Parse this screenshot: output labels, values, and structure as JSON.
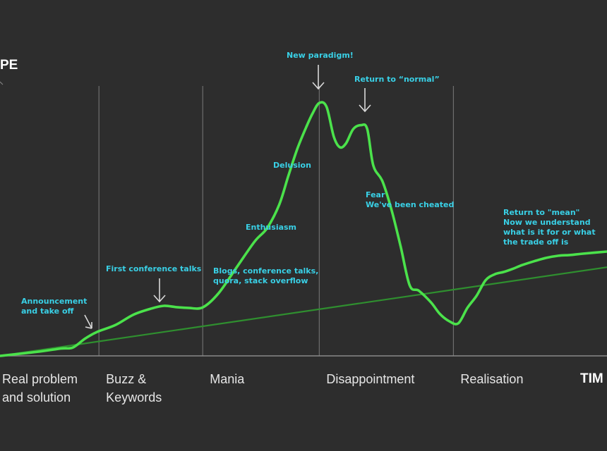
{
  "chart_data": {
    "type": "line",
    "y_axis_title": "PE",
    "x_axis_title": "TIM",
    "ylim": [
      0,
      100
    ],
    "xlim": [
      0,
      100
    ],
    "grid": false,
    "legend": "none",
    "colors": {
      "background": "#2d2d2d",
      "hype_curve": "#4be24b",
      "trend_line": "#2f8f2f",
      "annotation": "#39d0e6",
      "divider": "#6e6e6e"
    },
    "phases": [
      {
        "label": "Real problem\nand solution",
        "start": 0,
        "end": 16.3
      },
      {
        "label": "Buzz &\nKeywords",
        "start": 16.3,
        "end": 33.4
      },
      {
        "label": "Mania",
        "start": 33.4,
        "end": 52.6
      },
      {
        "label": "Disappointment",
        "start": 52.6,
        "end": 74.7
      },
      {
        "label": "Realisation",
        "start": 74.7,
        "end": 100
      }
    ],
    "series": [
      {
        "x": [
          0,
          6,
          10,
          12,
          14,
          16,
          19,
          22,
          25,
          27,
          29,
          31,
          33.4,
          36,
          39,
          42,
          44,
          46,
          47.5,
          49,
          50.5,
          51.5,
          52.6,
          53.8,
          55,
          56,
          57,
          58.2,
          59.5,
          60.5,
          61.5,
          63,
          64.5,
          66,
          67.5,
          69,
          71,
          72.5,
          74,
          75.5,
          77,
          78.5,
          80,
          81.5,
          83,
          84.5,
          86,
          88,
          90,
          92,
          94,
          96,
          100
        ],
        "y": [
          0,
          1.5,
          2.8,
          3.2,
          6.6,
          9.2,
          11.8,
          15.8,
          18.2,
          19.2,
          18.7,
          18.4,
          18.6,
          24,
          34,
          44,
          49,
          58,
          69,
          79.5,
          88,
          93,
          97,
          95.5,
          84,
          80,
          81.5,
          87,
          88.5,
          87,
          73,
          67,
          56,
          42,
          27,
          25,
          20.5,
          16,
          13.3,
          12.5,
          18.4,
          23,
          29,
          31.3,
          32.2,
          33.4,
          34.8,
          36.3,
          37.6,
          38.4,
          38.7,
          39.2,
          40
        ]
      },
      {
        "x": [
          0,
          100
        ],
        "y": [
          0,
          34
        ]
      }
    ],
    "annotations": [
      {
        "text": "Announcement\nand take off",
        "x": 15,
        "y": 10,
        "arrow": true
      },
      {
        "text": "First conference talks",
        "x": 26,
        "y": 22,
        "arrow": true
      },
      {
        "text": "Blogs, conference talks,\nquora, stack overflow",
        "x": 35,
        "y": 29,
        "arrow": false
      },
      {
        "text": "Enthusiasm",
        "x": 41,
        "y": 48,
        "arrow": false
      },
      {
        "text": "Delusion",
        "x": 45,
        "y": 72,
        "arrow": false
      },
      {
        "text": "New paradigm!",
        "x": 52.4,
        "y": 100,
        "arrow": true
      },
      {
        "text": "Return to “normal”",
        "x": 60,
        "y": 90,
        "arrow": true
      },
      {
        "text": "Fear\nWe've been cheated",
        "x": 60,
        "y": 58,
        "arrow": false
      },
      {
        "text": "Return to \"mean\"\nNow we understand\nwhat is it for or what\nthe trade off is",
        "x": 83,
        "y": 54,
        "arrow": false
      }
    ]
  }
}
